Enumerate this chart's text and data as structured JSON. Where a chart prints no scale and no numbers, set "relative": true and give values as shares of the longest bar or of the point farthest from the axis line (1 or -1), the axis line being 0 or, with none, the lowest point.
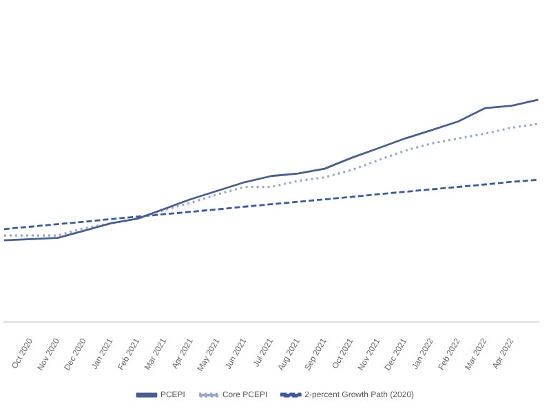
{
  "chart_data": {
    "type": "line",
    "relative": true,
    "grid": false,
    "legend": "bottom",
    "marker": "none",
    "categories": [
      null,
      "Oct 2020",
      "Nov 2020",
      "Dec 2020",
      "Jan 2021",
      "Feb 2021",
      "Mar 2021",
      "Apr 2021",
      "May 2021",
      "Jun 2021",
      "Jul 2021",
      "Aug 2021",
      "Sep 2021",
      "Oct 2021",
      "Nov 2021",
      "Dec 2021",
      "Jan 2022",
      "Feb 2022",
      "Mar 2022",
      "Apr 2022",
      null
    ],
    "series": [
      {
        "name": "PCEPI",
        "color": "#4a5e8c",
        "line_style": "solid",
        "values": [
          0.366,
          0.372,
          0.377,
          0.41,
          0.443,
          0.464,
          0.508,
          0.552,
          0.59,
          0.628,
          0.656,
          0.667,
          0.689,
          0.738,
          0.781,
          0.825,
          0.863,
          0.902,
          0.962,
          0.973,
          1
        ]
      },
      {
        "name": "Core PCEPI",
        "color": "#9aa8c8",
        "line_style": "dotted",
        "values": [
          0.388,
          0.388,
          0.388,
          0.421,
          0.443,
          0.464,
          0.503,
          0.536,
          0.574,
          0.607,
          0.607,
          0.634,
          0.65,
          0.683,
          0.727,
          0.77,
          0.803,
          0.825,
          0.847,
          0.874,
          0.891
        ]
      },
      {
        "name": "2-percent Growth Path (2020)",
        "color": "#3c5a9a",
        "line_style": "dashed",
        "values": [
          0.417,
          0.428,
          0.439,
          0.45,
          0.462,
          0.473,
          0.484,
          0.495,
          0.506,
          0.518,
          0.529,
          0.54,
          0.551,
          0.562,
          0.574,
          0.585,
          0.596,
          0.607,
          0.618,
          0.63,
          0.639
        ]
      }
    ]
  }
}
